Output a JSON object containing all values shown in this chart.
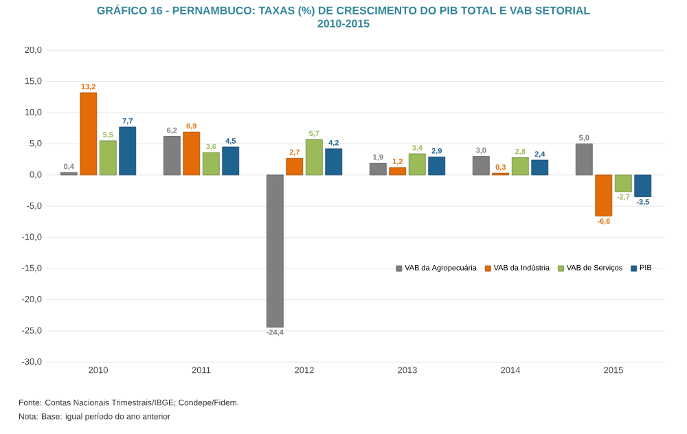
{
  "chart_data": {
    "type": "bar",
    "title": "GRÁFICO 16 - PERNAMBUCO: TAXAS (%) DE CRESCIMENTO DO PIB TOTAL E VAB SETORIAL",
    "subtitle": "2010-2015",
    "categories": [
      "2010",
      "2011",
      "2012",
      "2013",
      "2014",
      "2015"
    ],
    "series": [
      {
        "name": "VAB da Agropecuária",
        "color": "#7f7f7f",
        "values": [
          0.4,
          6.2,
          -24.4,
          1.9,
          3.0,
          5.0
        ],
        "value_labels": [
          "0,4",
          "6,2",
          "-24,4",
          "1,9",
          "3,0",
          "5,0"
        ]
      },
      {
        "name": "VAB da Indústria",
        "color": "#e36c09",
        "values": [
          13.2,
          6.9,
          2.7,
          1.2,
          0.3,
          -6.6
        ],
        "value_labels": [
          "13,2",
          "6,9",
          "2,7",
          "1,2",
          "0,3",
          "-6,6"
        ]
      },
      {
        "name": "VAB de Serviços",
        "color": "#9bbb59",
        "values": [
          5.5,
          3.6,
          5.7,
          3.4,
          2.8,
          -2.7
        ],
        "value_labels": [
          "5,5",
          "3,6",
          "5,7",
          "3,4",
          "2,8",
          "-2,7"
        ]
      },
      {
        "name": "PIB",
        "color": "#1f6391",
        "values": [
          7.7,
          4.5,
          4.2,
          2.9,
          2.4,
          -3.5
        ],
        "value_labels": [
          "7,7",
          "4,5",
          "4,2",
          "2,9",
          "2,4",
          "-3,5"
        ]
      }
    ],
    "ylim": [
      -30,
      20
    ],
    "yticks": [
      {
        "value": -30,
        "label": "-30,0"
      },
      {
        "value": -25,
        "label": "-25,0"
      },
      {
        "value": -20,
        "label": "-20,0"
      },
      {
        "value": -15,
        "label": "-15,0"
      },
      {
        "value": -10,
        "label": "-10,0"
      },
      {
        "value": -5,
        "label": "-5,0"
      },
      {
        "value": 0,
        "label": "0,0"
      },
      {
        "value": 5,
        "label": "5,0"
      },
      {
        "value": 10,
        "label": "10,0"
      },
      {
        "value": 15,
        "label": "15,0"
      },
      {
        "value": 20,
        "label": "20,0"
      }
    ],
    "grid": "y",
    "legend": "right",
    "annotations": [
      "Fonte: Contas Nacionais Trimestrais/IBGE; Condepe/Fidem.",
      "Nota: Base: igual período do ano anterior"
    ]
  }
}
